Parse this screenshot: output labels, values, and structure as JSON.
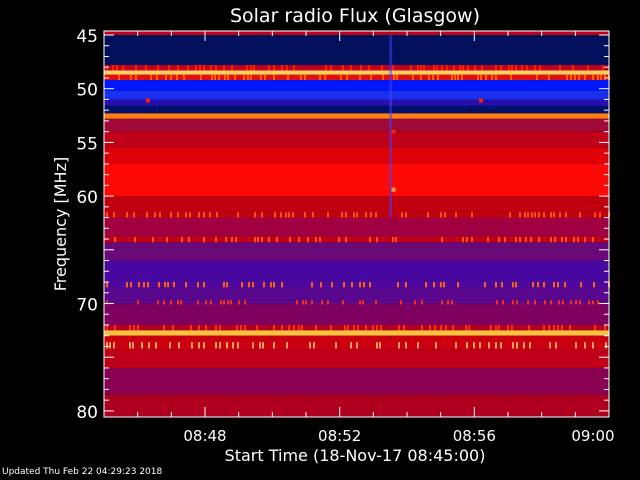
{
  "chart_data": {
    "type": "heatmap",
    "title": "Solar radio Flux (Glasgow)",
    "xlabel": "Start Time (18-Nov-17 08:45:00)",
    "ylabel": "Frequency [MHz]",
    "xlim": [
      "08:45",
      "09:00"
    ],
    "ylim": [
      80,
      45
    ],
    "x_tick_labels": [
      "08:48",
      "08:52",
      "08:56",
      "09:00"
    ],
    "x_tick_minutes": [
      3,
      7,
      11,
      15
    ],
    "y_tick_labels": [
      "45",
      "50",
      "55",
      "60",
      "70",
      "80"
    ],
    "y_tick_values": [
      45,
      50,
      55,
      60,
      70,
      80
    ],
    "bands": [
      {
        "f": [
          44.6,
          45.0
        ],
        "color": "#c00018"
      },
      {
        "f": [
          45.0,
          47.8
        ],
        "color": "#00105a"
      },
      {
        "f": [
          47.8,
          48.3
        ],
        "color": "#c00020",
        "speckle": "#ff2000"
      },
      {
        "f": [
          48.3,
          48.7
        ],
        "color": "#ffd060"
      },
      {
        "f": [
          48.7,
          49.2
        ],
        "color": "#e01010",
        "speckle": "#ff6000"
      },
      {
        "f": [
          49.2,
          50.2
        ],
        "color": "#0018ff"
      },
      {
        "f": [
          50.2,
          51.0
        ],
        "color": "#1830f0"
      },
      {
        "f": [
          51.0,
          51.6
        ],
        "color": "#2810b0"
      },
      {
        "f": [
          51.6,
          52.3
        ],
        "color": "#00106a"
      },
      {
        "f": [
          52.3,
          52.8
        ],
        "color": "#ff8010"
      },
      {
        "f": [
          52.8,
          54.0
        ],
        "color": "#a00838"
      },
      {
        "f": [
          54.0,
          55.5
        ],
        "color": "#c00018"
      },
      {
        "f": [
          55.5,
          57.0
        ],
        "color": "#e00008"
      },
      {
        "f": [
          57.0,
          60.0
        ],
        "color": "#ff0808"
      },
      {
        "f": [
          60.0,
          61.5
        ],
        "color": "#c00010"
      },
      {
        "f": [
          61.5,
          62.0
        ],
        "color": "#c80010",
        "speckle": "#ff5010"
      },
      {
        "f": [
          62.0,
          63.8
        ],
        "color": "#a00040"
      },
      {
        "f": [
          63.8,
          64.3
        ],
        "color": "#c00018",
        "speckle": "#ff5010"
      },
      {
        "f": [
          64.3,
          66.0
        ],
        "color": "#6a0878"
      },
      {
        "f": [
          66.0,
          68.0
        ],
        "color": "#4808a0"
      },
      {
        "f": [
          68.0,
          68.5
        ],
        "color": "#5008a0",
        "speckle": "#ff6010"
      },
      {
        "f": [
          68.5,
          69.7
        ],
        "color": "#5a0890"
      },
      {
        "f": [
          69.7,
          70.1
        ],
        "color": "#600888",
        "speckle": "#ff3010"
      },
      {
        "f": [
          70.1,
          72.0
        ],
        "color": "#800060"
      },
      {
        "f": [
          72.0,
          72.5
        ],
        "color": "#b00020",
        "speckle": "#ff3010"
      },
      {
        "f": [
          72.5,
          73.0
        ],
        "color": "#ffc040"
      },
      {
        "f": [
          73.0,
          73.6
        ],
        "color": "#c80010"
      },
      {
        "f": [
          73.6,
          74.2
        ],
        "color": "#d00010",
        "speckle": "#ffa060"
      },
      {
        "f": [
          74.2,
          76.0
        ],
        "color": "#c00018"
      },
      {
        "f": [
          76.0,
          78.5
        ],
        "color": "#8a0050"
      },
      {
        "f": [
          78.5,
          80.6
        ],
        "color": "#b00020"
      }
    ],
    "features": [
      {
        "type": "vertical-line",
        "time_min": 8.5,
        "f": [
          45,
          62
        ],
        "color": "#4040ff"
      },
      {
        "type": "spot",
        "time_min": 8.6,
        "f": 59.4,
        "color": "#ffa040"
      },
      {
        "type": "spot",
        "time_min": 8.6,
        "f": 54.0,
        "color": "#ff2000"
      },
      {
        "type": "spot",
        "time_min": 1.3,
        "f": 51.1,
        "color": "#ff2000"
      },
      {
        "type": "spot",
        "time_min": 11.2,
        "f": 51.1,
        "color": "#ff2000"
      }
    ]
  },
  "footer": {
    "updated": "Updated Thu Feb 22 04:29:23 2018"
  }
}
